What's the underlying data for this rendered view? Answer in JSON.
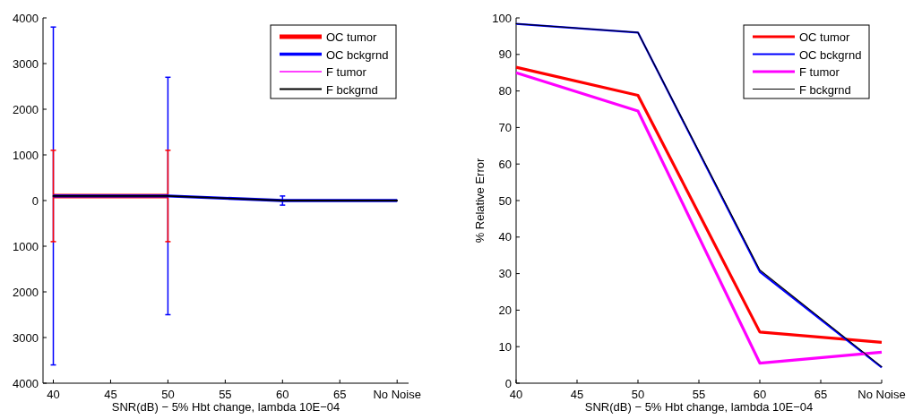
{
  "chart_data": [
    {
      "type": "line",
      "xlabel": "SNR(dB) − 5% Hbt change, lambda 10E−04",
      "x": [
        40,
        50,
        60,
        70
      ],
      "xlim": [
        39.1,
        71
      ],
      "xticks": [
        40,
        45,
        50,
        55,
        60,
        65,
        {
          "value": 70,
          "label": "No Noise"
        }
      ],
      "ylim": [
        -4000,
        4000
      ],
      "yticks": [
        {
          "value": -4000,
          "label": "4000"
        },
        {
          "value": -3000,
          "label": "3000"
        },
        {
          "value": -2000,
          "label": "2000"
        },
        {
          "value": -1000,
          "label": "1000"
        },
        0,
        1000,
        2000,
        3000,
        4000
      ],
      "legend": "top right",
      "grid": false,
      "series": [
        {
          "name": "OC tumor",
          "color": "#ff0000",
          "values": [
            100,
            100,
            null,
            null
          ],
          "errors": [
            1000,
            1000,
            null,
            null
          ]
        },
        {
          "name": "OC bckgrnd",
          "color": "#0000ff",
          "values": [
            100,
            100,
            0,
            0
          ],
          "errors": [
            3700,
            2600,
            100,
            null
          ]
        },
        {
          "name": "F tumor",
          "color": "#ff00ff",
          "values": [
            null,
            null,
            null,
            null
          ]
        },
        {
          "name": "F bckgrnd",
          "color": "#000000",
          "values": [
            100,
            100,
            0,
            0
          ]
        }
      ]
    },
    {
      "type": "line",
      "xlabel": "SNR(dB) − 5% Hbt change, lambda 10E−04",
      "ylabel": "% Relative Error",
      "x": [
        40,
        50,
        60,
        70
      ],
      "xlim": [
        40,
        70
      ],
      "xticks": [
        40,
        45,
        50,
        55,
        60,
        65,
        {
          "value": 70,
          "label": "No Noise"
        }
      ],
      "ylim": [
        0,
        100
      ],
      "yticks": [
        0,
        10,
        20,
        30,
        40,
        50,
        60,
        70,
        80,
        90,
        100
      ],
      "legend": "top right",
      "grid": false,
      "series": [
        {
          "name": "OC tumor",
          "color": "#ff0000",
          "values": [
            86.5,
            78.8,
            14,
            11.2
          ]
        },
        {
          "name": "OC bckgrnd",
          "color": "#0000ff",
          "values": [
            98.4,
            96,
            30.5,
            4.3
          ]
        },
        {
          "name": "F tumor",
          "color": "#ff00ff",
          "values": [
            85,
            74.5,
            5.5,
            8.5
          ]
        },
        {
          "name": "F bckgrnd",
          "color": "#000000",
          "values": [
            98.4,
            96,
            31,
            4.5
          ]
        }
      ]
    }
  ]
}
